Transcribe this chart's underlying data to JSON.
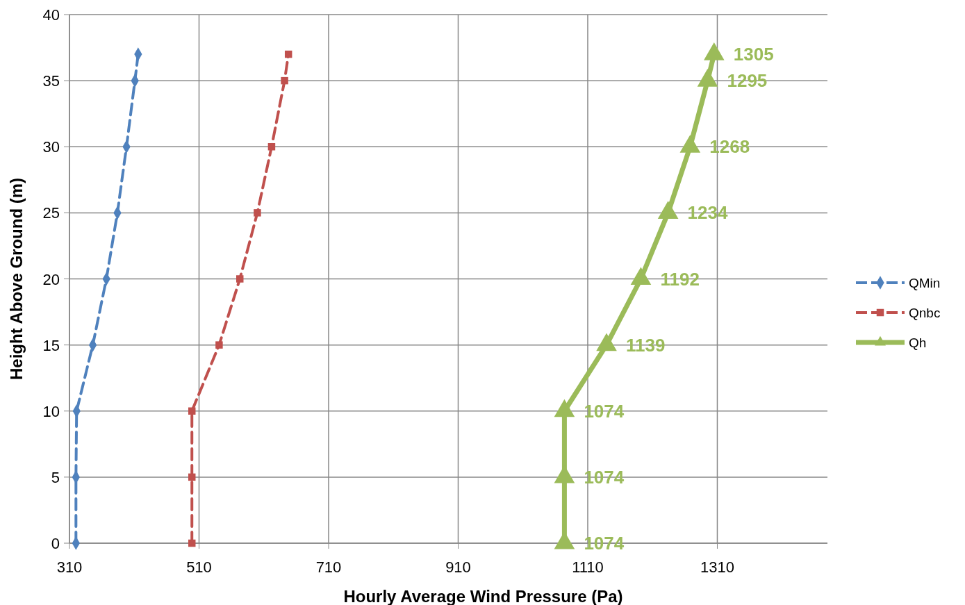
{
  "chart_data": {
    "type": "line",
    "orientation": "horizontal",
    "xlabel": "Hourly Average Wind Pressure (Pa)",
    "ylabel": "Height Above Ground (m)",
    "xlim": [
      310,
      1480
    ],
    "xticks": [
      310,
      510,
      710,
      910,
      1110,
      1310
    ],
    "ylim": [
      0,
      40
    ],
    "yticks": [
      0,
      5,
      10,
      15,
      20,
      25,
      30,
      35,
      40
    ],
    "grid": true,
    "legend": "right",
    "series": [
      {
        "name": "QMin",
        "color": "#4f81bd",
        "marker": "diamond",
        "line_style": "dashed",
        "x": [
          0,
          5,
          10,
          15,
          20,
          25,
          30,
          35,
          37
        ],
        "values": [
          320,
          320,
          321,
          346,
          367,
          384,
          398,
          411,
          416
        ]
      },
      {
        "name": "Qnbc",
        "color": "#c0504d",
        "marker": "square",
        "line_style": "dashed",
        "x": [
          0,
          5,
          10,
          15,
          20,
          25,
          30,
          35,
          37
        ],
        "values": [
          499,
          499,
          499,
          541,
          573,
          600,
          622,
          642,
          648
        ]
      },
      {
        "name": "Qh",
        "color": "#9bbb59",
        "marker": "triangle",
        "line_style": "solid",
        "x": [
          0,
          5,
          10,
          15,
          20,
          25,
          30,
          35,
          37
        ],
        "values": [
          1074,
          1074,
          1074,
          1139,
          1192,
          1234,
          1268,
          1295,
          1305
        ],
        "value_labels": [
          "1074",
          "1074",
          "1074",
          "1139",
          "1192",
          "1234",
          "1268",
          "1295",
          "1305"
        ]
      }
    ]
  }
}
